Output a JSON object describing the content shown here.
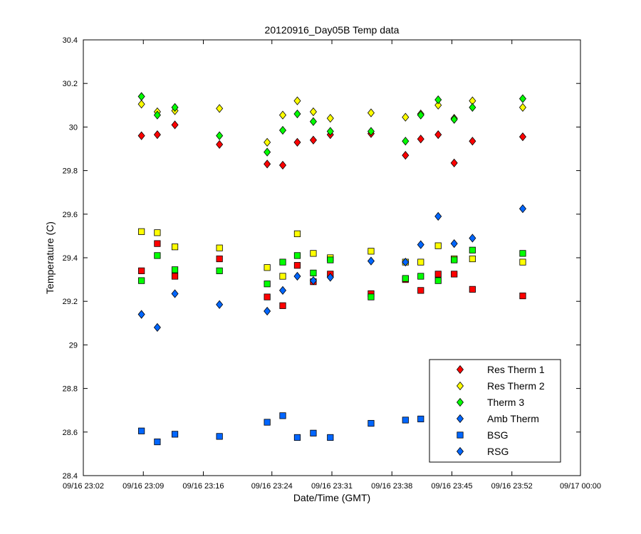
{
  "chart_data": {
    "type": "scatter",
    "title": "20120916_Day05B Temp data",
    "xlabel": "Date/Time (GMT)",
    "ylabel": "Temperature (C)",
    "xlim": [
      "09/16 23:02",
      "09/17 00:00"
    ],
    "ylim": [
      28.4,
      30.4
    ],
    "x_ticks": [
      "09/16 23:02",
      "09/16 23:09",
      "09/16 23:16",
      "09/16 23:24",
      "09/16 23:31",
      "09/16 23:38",
      "09/16 23:45",
      "09/16 23:52",
      "09/17 00:00"
    ],
    "y_ticks": [
      "28.4",
      "28.6",
      "28.8",
      "29",
      "29.2",
      "29.4",
      "29.6",
      "29.8",
      "30",
      "30.2",
      "30.4"
    ],
    "grid": false,
    "legend_position": "bottom-right",
    "series": [
      {
        "name": "Res Therm 1",
        "marker": "diamond",
        "color": "#ff0000",
        "points": [
          [
            "23:08:47",
            29.96
          ],
          [
            "23:10:38",
            29.965
          ],
          [
            "23:12:41",
            30.01
          ],
          [
            "23:17:53",
            29.92
          ],
          [
            "23:23:27",
            29.83
          ],
          [
            "23:25:16",
            29.825
          ],
          [
            "23:26:58",
            29.93
          ],
          [
            "23:28:50",
            29.94
          ],
          [
            "23:30:49",
            29.965
          ],
          [
            "23:35:34",
            29.97
          ],
          [
            "23:39:35",
            29.87
          ],
          [
            "23:41:22",
            29.945
          ],
          [
            "23:43:24",
            29.965
          ],
          [
            "23:45:16",
            29.835
          ],
          [
            "23:47:24",
            29.935
          ],
          [
            "23:53:16",
            29.955
          ]
        ]
      },
      {
        "name": "Res Therm 2",
        "marker": "diamond",
        "color": "#ffff00",
        "points": [
          [
            "23:08:47",
            30.105
          ],
          [
            "23:10:38",
            30.07
          ],
          [
            "23:12:41",
            30.075
          ],
          [
            "23:17:53",
            30.085
          ],
          [
            "23:23:27",
            29.93
          ],
          [
            "23:25:16",
            30.055
          ],
          [
            "23:26:58",
            30.12
          ],
          [
            "23:28:50",
            30.07
          ],
          [
            "23:30:49",
            30.04
          ],
          [
            "23:35:34",
            30.065
          ],
          [
            "23:39:35",
            30.045
          ],
          [
            "23:41:22",
            30.06
          ],
          [
            "23:43:24",
            30.1
          ],
          [
            "23:45:16",
            30.04
          ],
          [
            "23:47:24",
            30.12
          ],
          [
            "23:53:16",
            30.09
          ]
        ]
      },
      {
        "name": "Therm 3",
        "marker": "diamond",
        "color": "#00ff00",
        "points": [
          [
            "23:08:47",
            30.14
          ],
          [
            "23:10:38",
            30.055
          ],
          [
            "23:12:41",
            30.09
          ],
          [
            "23:17:53",
            29.96
          ],
          [
            "23:23:27",
            29.885
          ],
          [
            "23:25:16",
            29.985
          ],
          [
            "23:26:58",
            30.06
          ],
          [
            "23:28:50",
            30.025
          ],
          [
            "23:30:49",
            29.98
          ],
          [
            "23:35:34",
            29.98
          ],
          [
            "23:39:35",
            29.935
          ],
          [
            "23:41:22",
            30.055
          ],
          [
            "23:43:24",
            30.125
          ],
          [
            "23:45:16",
            30.035
          ],
          [
            "23:47:24",
            30.09
          ],
          [
            "23:53:16",
            30.13
          ]
        ]
      },
      {
        "name": "Amb Therm",
        "marker": "diamond",
        "color": "#0066ff",
        "points": [
          [
            "23:08:47",
            29.14
          ],
          [
            "23:10:38",
            29.08
          ],
          [
            "23:12:41",
            29.235
          ],
          [
            "23:17:53",
            29.185
          ],
          [
            "23:23:27",
            29.155
          ],
          [
            "23:25:16",
            29.25
          ],
          [
            "23:26:58",
            29.315
          ],
          [
            "23:28:50",
            29.295
          ],
          [
            "23:30:49",
            29.31
          ],
          [
            "23:35:34",
            29.385
          ],
          [
            "23:39:35",
            29.38
          ],
          [
            "23:41:22",
            29.46
          ],
          [
            "23:43:24",
            29.59
          ],
          [
            "23:45:16",
            29.465
          ],
          [
            "23:47:24",
            29.49
          ],
          [
            "23:53:16",
            29.625
          ]
        ]
      },
      {
        "name": "BSG",
        "marker": "square",
        "color": "#0066ff",
        "points": [
          [
            "23:08:47",
            28.605
          ],
          [
            "23:10:38",
            28.555
          ],
          [
            "23:12:41",
            28.59
          ],
          [
            "23:17:53",
            28.58
          ],
          [
            "23:23:27",
            28.645
          ],
          [
            "23:25:16",
            28.675
          ],
          [
            "23:26:58",
            28.575
          ],
          [
            "23:28:50",
            28.595
          ],
          [
            "23:30:49",
            28.575
          ],
          [
            "23:35:34",
            28.64
          ],
          [
            "23:39:35",
            28.655
          ],
          [
            "23:41:22",
            28.66
          ]
        ]
      },
      {
        "name": "RSG",
        "marker": "diamond",
        "color": "#0066ff",
        "points": []
      },
      {
        "name": "",
        "marker": "square",
        "color": "#ff0000",
        "points": [
          [
            "23:08:47",
            29.34
          ],
          [
            "23:10:38",
            29.465
          ],
          [
            "23:12:41",
            29.315
          ],
          [
            "23:17:53",
            29.395
          ],
          [
            "23:23:27",
            29.22
          ],
          [
            "23:25:16",
            29.18
          ],
          [
            "23:26:58",
            29.365
          ],
          [
            "23:28:50",
            29.29
          ],
          [
            "23:30:49",
            29.325
          ],
          [
            "23:35:34",
            29.235
          ],
          [
            "23:39:35",
            29.3
          ],
          [
            "23:41:22",
            29.25
          ],
          [
            "23:43:24",
            29.325
          ],
          [
            "23:45:16",
            29.325
          ],
          [
            "23:47:24",
            29.255
          ],
          [
            "23:53:16",
            29.225
          ]
        ]
      },
      {
        "name": "",
        "marker": "square",
        "color": "#ffff00",
        "points": [
          [
            "23:08:47",
            29.52
          ],
          [
            "23:10:38",
            29.515
          ],
          [
            "23:12:41",
            29.45
          ],
          [
            "23:17:53",
            29.445
          ],
          [
            "23:23:27",
            29.355
          ],
          [
            "23:25:16",
            29.315
          ],
          [
            "23:26:58",
            29.51
          ],
          [
            "23:28:50",
            29.42
          ],
          [
            "23:30:49",
            29.4
          ],
          [
            "23:35:34",
            29.43
          ],
          [
            "23:39:35",
            29.38
          ],
          [
            "23:41:22",
            29.38
          ],
          [
            "23:43:24",
            29.455
          ],
          [
            "23:45:16",
            29.395
          ],
          [
            "23:47:24",
            29.395
          ],
          [
            "23:53:16",
            29.38
          ]
        ]
      },
      {
        "name": "",
        "marker": "square",
        "color": "#00ff00",
        "points": [
          [
            "23:08:47",
            29.295
          ],
          [
            "23:10:38",
            29.41
          ],
          [
            "23:12:41",
            29.345
          ],
          [
            "23:17:53",
            29.34
          ],
          [
            "23:23:27",
            29.28
          ],
          [
            "23:25:16",
            29.38
          ],
          [
            "23:26:58",
            29.41
          ],
          [
            "23:28:50",
            29.33
          ],
          [
            "23:30:49",
            29.39
          ],
          [
            "23:35:34",
            29.22
          ],
          [
            "23:39:35",
            29.305
          ],
          [
            "23:41:22",
            29.315
          ],
          [
            "23:43:24",
            29.295
          ],
          [
            "23:45:16",
            29.39
          ],
          [
            "23:47:24",
            29.435
          ],
          [
            "23:53:16",
            29.42
          ]
        ]
      }
    ]
  }
}
